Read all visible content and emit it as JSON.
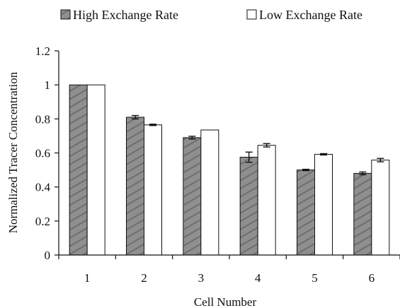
{
  "chart_data": {
    "type": "bar",
    "categories": [
      "1",
      "2",
      "3",
      "4",
      "5",
      "6"
    ],
    "series": [
      {
        "name": "High Exchange Rate",
        "values": [
          1.0,
          0.81,
          0.69,
          0.575,
          0.5,
          0.48
        ],
        "errors": [
          0.0,
          0.01,
          0.008,
          0.03,
          0.004,
          0.008
        ],
        "color": "#8f8f8f"
      },
      {
        "name": "Low Exchange Rate",
        "values": [
          1.0,
          0.765,
          0.735,
          0.645,
          0.592,
          0.558
        ],
        "errors": [
          0.0,
          0.004,
          0.0,
          0.01,
          0.004,
          0.01
        ],
        "color": "#ffffff"
      }
    ],
    "xlabel": "Cell Number",
    "ylabel": "Normalized Tracer Concentration",
    "ylim": [
      0,
      1.2
    ],
    "yticks": [
      "0",
      "0.2",
      "0.4",
      "0.6",
      "0.8",
      "1",
      "1.2"
    ],
    "grid": false,
    "legend_position": "top"
  }
}
